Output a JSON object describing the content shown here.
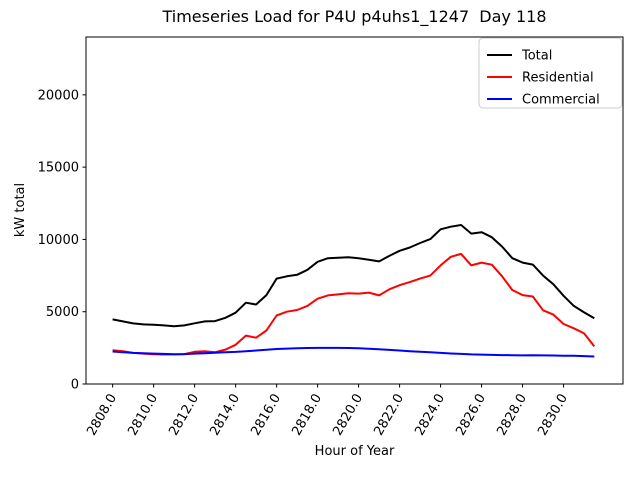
{
  "figure": {
    "background": "#ffffff"
  },
  "chart_data": {
    "type": "line",
    "title": "Timeseries Load for P4U p4uhs1_1247  Day 118",
    "xlabel": "Hour of Year",
    "ylabel": "kW total",
    "xlim": [
      2806.7,
      2832.9
    ],
    "ylim": [
      0,
      24000
    ],
    "grid": false,
    "legend_position": "upper right",
    "x_tick_labels": [
      "2808.0",
      "2810.0",
      "2812.0",
      "2814.0",
      "2816.0",
      "2818.0",
      "2820.0",
      "2822.0",
      "2824.0",
      "2826.0",
      "2828.0",
      "2830.0"
    ],
    "y_tick_labels": [
      "0",
      "5000",
      "10000",
      "15000",
      "20000"
    ],
    "x": [
      2808.0,
      2808.5,
      2809.0,
      2809.5,
      2810.0,
      2810.5,
      2811.0,
      2811.5,
      2812.0,
      2812.5,
      2813.0,
      2813.5,
      2814.0,
      2814.5,
      2815.0,
      2815.5,
      2816.0,
      2816.5,
      2817.0,
      2817.5,
      2818.0,
      2818.5,
      2819.0,
      2819.5,
      2820.0,
      2820.5,
      2821.0,
      2821.5,
      2822.0,
      2822.5,
      2823.0,
      2823.5,
      2824.0,
      2824.5,
      2825.0,
      2825.5,
      2826.0,
      2826.5,
      2827.0,
      2827.5,
      2828.0,
      2828.5,
      2829.0,
      2829.5,
      2830.0,
      2830.5,
      2831.0,
      2831.5
    ],
    "series": [
      {
        "name": "Total",
        "color": "#000000",
        "values": [
          4470,
          4330,
          4190,
          4120,
          4100,
          4050,
          4000,
          4050,
          4200,
          4330,
          4350,
          4580,
          4930,
          5620,
          5500,
          6150,
          7290,
          7450,
          7550,
          7900,
          8450,
          8700,
          8730,
          8770,
          8700,
          8600,
          8480,
          8860,
          9210,
          9440,
          9750,
          10020,
          10700,
          10880,
          11000,
          10400,
          10500,
          10150,
          9500,
          8700,
          8400,
          8260,
          7500,
          6900,
          6100,
          5400,
          4950,
          4550
        ]
      },
      {
        "name": "Residential",
        "color": "#ff0000",
        "values": [
          2330,
          2270,
          2150,
          2100,
          2060,
          2040,
          2050,
          2070,
          2230,
          2260,
          2200,
          2380,
          2710,
          3350,
          3200,
          3700,
          4740,
          5000,
          5120,
          5400,
          5900,
          6130,
          6200,
          6270,
          6250,
          6320,
          6130,
          6550,
          6830,
          7050,
          7290,
          7500,
          8200,
          8800,
          9000,
          8200,
          8400,
          8250,
          7450,
          6500,
          6150,
          6050,
          5100,
          4800,
          4150,
          3850,
          3500,
          2600
        ]
      },
      {
        "name": "Commercial",
        "color": "#0000ff",
        "values": [
          2250,
          2200,
          2150,
          2120,
          2100,
          2080,
          2060,
          2070,
          2100,
          2130,
          2160,
          2190,
          2220,
          2270,
          2320,
          2370,
          2420,
          2450,
          2470,
          2490,
          2500,
          2500,
          2500,
          2490,
          2470,
          2440,
          2400,
          2360,
          2320,
          2270,
          2230,
          2190,
          2150,
          2110,
          2080,
          2050,
          2030,
          2010,
          2000,
          1990,
          1980,
          1990,
          1980,
          1970,
          1960,
          1950,
          1930,
          1900
        ]
      }
    ]
  }
}
